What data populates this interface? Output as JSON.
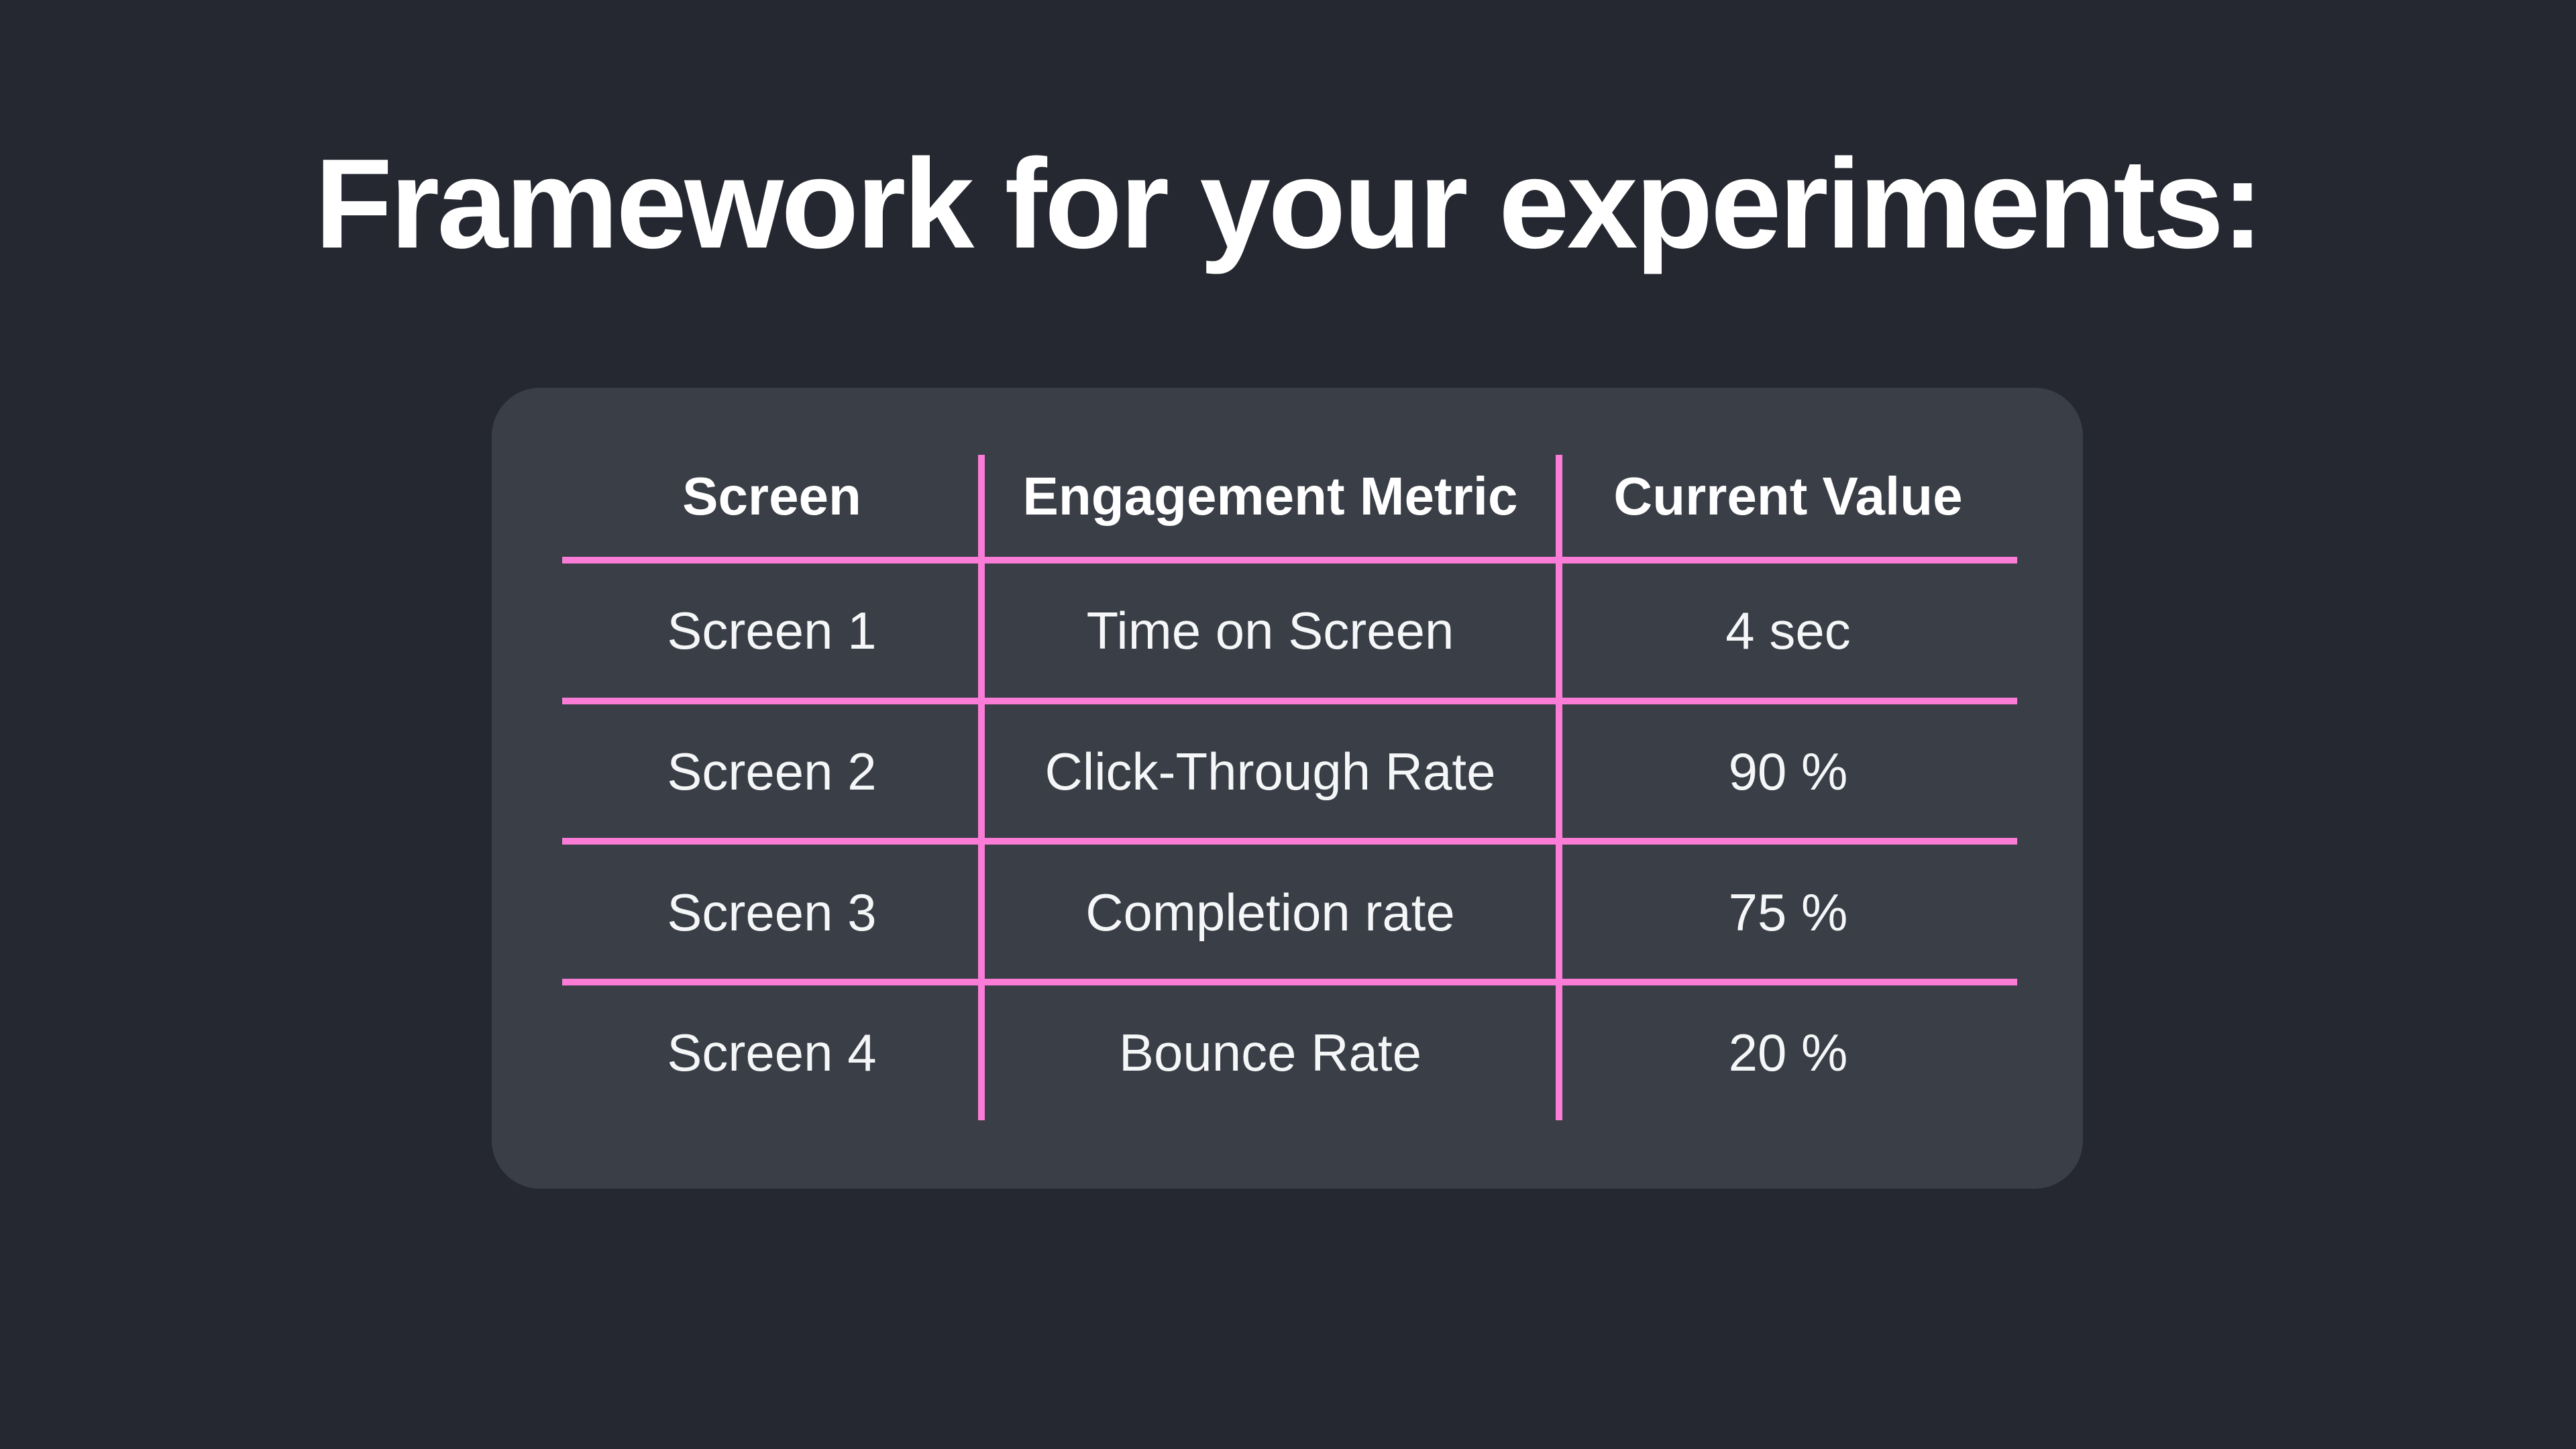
{
  "title": "Framework for your experiments:",
  "table": {
    "headers": [
      "Screen",
      "Engagement Metric",
      "Current Value"
    ],
    "rows": [
      {
        "screen": "Screen 1",
        "metric": "Time on Screen",
        "value": "4 sec"
      },
      {
        "screen": "Screen 2",
        "metric": "Click-Through Rate",
        "value": "90 %"
      },
      {
        "screen": "Screen 3",
        "metric": "Completion rate",
        "value": "75 %"
      },
      {
        "screen": "Screen 4",
        "metric": "Bounce Rate",
        "value": "20 %"
      }
    ]
  },
  "colors": {
    "background": "#252830",
    "card": "#3A3E47",
    "divider": "#FA7CD7",
    "text": "#F5F6F7"
  }
}
